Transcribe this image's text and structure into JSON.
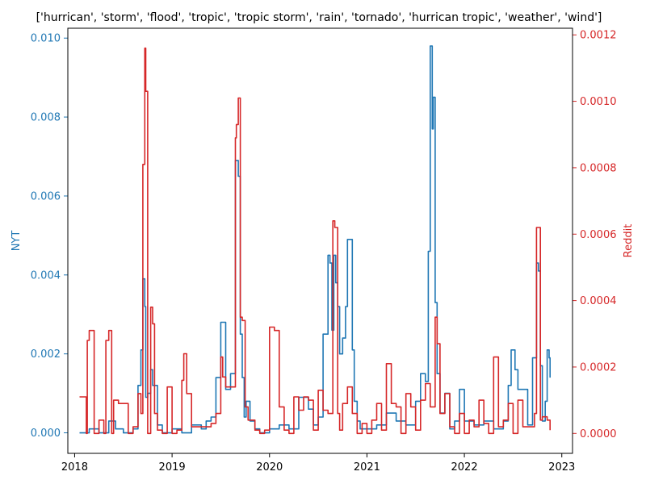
{
  "chart_data": {
    "type": "line",
    "title": "['hurrican', 'storm', 'flood', 'tropic', 'tropic storm', 'rain', 'tornado', 'hurrican tropic', 'weather', 'wind']",
    "xlabel": "",
    "ylabel": "NYT",
    "ylabel_right": "Reddit",
    "xlim": [
      2017.93,
      2023.11
    ],
    "ylim": [
      -0.00052,
      0.01025
    ],
    "ylim_right": [
      -6e-05,
      0.00122
    ],
    "xticks": [
      2018,
      2019,
      2020,
      2021,
      2022,
      2023
    ],
    "xtick_labels": [
      "2018",
      "2019",
      "2020",
      "2021",
      "2022",
      "2023"
    ],
    "yticks": [
      0.0,
      0.002,
      0.004,
      0.006,
      0.008,
      0.01
    ],
    "ytick_labels": [
      "0.000",
      "0.002",
      "0.004",
      "0.006",
      "0.008",
      "0.010"
    ],
    "yticks_right": [
      0.0,
      0.0002,
      0.0004,
      0.0006,
      0.0008,
      0.001,
      0.0012
    ],
    "ytick_labels_right": [
      "0.0000",
      "0.0002",
      "0.0004",
      "0.0006",
      "0.0008",
      "0.0010",
      "0.0012"
    ],
    "grid": false,
    "colors": {
      "nyt": "#1f77b4",
      "reddit": "#d62728"
    },
    "series": [
      {
        "axis": "left",
        "color": "#1f77b4",
        "x": [
          2018.05,
          2018.15,
          2018.25,
          2018.35,
          2018.42,
          2018.5,
          2018.6,
          2018.65,
          2018.68,
          2018.7,
          2018.72,
          2018.73,
          2018.75,
          2018.78,
          2018.8,
          2018.85,
          2018.9,
          2019.0,
          2019.1,
          2019.2,
          2019.3,
          2019.35,
          2019.4,
          2019.45,
          2019.5,
          2019.52,
          2019.55,
          2019.6,
          2019.65,
          2019.68,
          2019.7,
          2019.72,
          2019.74,
          2019.76,
          2019.8,
          2019.85,
          2019.9,
          2020.0,
          2020.1,
          2020.2,
          2020.3,
          2020.4,
          2020.45,
          2020.5,
          2020.55,
          2020.6,
          2020.62,
          2020.64,
          2020.66,
          2020.68,
          2020.7,
          2020.72,
          2020.75,
          2020.78,
          2020.8,
          2020.82,
          2020.85,
          2020.87,
          2020.9,
          2020.93,
          2021.0,
          2021.1,
          2021.2,
          2021.3,
          2021.4,
          2021.5,
          2021.55,
          2021.6,
          2021.63,
          2021.65,
          2021.67,
          2021.68,
          2021.7,
          2021.72,
          2021.75,
          2021.8,
          2021.85,
          2021.9,
          2021.95,
          2022.0,
          2022.1,
          2022.2,
          2022.3,
          2022.4,
          2022.45,
          2022.48,
          2022.52,
          2022.55,
          2022.6,
          2022.65,
          2022.7,
          2022.72,
          2022.74,
          2022.76,
          2022.78,
          2022.8,
          2022.83,
          2022.85,
          2022.87,
          2022.88
        ],
        "values": [
          0.0,
          0.0001,
          0.0,
          0.0003,
          0.0001,
          0.0,
          0.0001,
          0.0012,
          0.0021,
          0.0039,
          0.0032,
          0.0009,
          0.001,
          0.0016,
          0.0012,
          0.0002,
          0.0,
          0.0001,
          0.0,
          0.0002,
          0.0001,
          0.0003,
          0.0004,
          0.0014,
          0.0028,
          0.0028,
          0.0011,
          0.0015,
          0.0069,
          0.0065,
          0.0025,
          0.0014,
          0.0004,
          0.0008,
          0.0003,
          0.0001,
          0.0,
          0.0001,
          0.0002,
          0.0001,
          0.0009,
          0.0006,
          0.0002,
          0.0004,
          0.0025,
          0.0045,
          0.0043,
          0.0026,
          0.0045,
          0.0038,
          0.0032,
          0.002,
          0.0024,
          0.0032,
          0.0049,
          0.0049,
          0.0021,
          0.0008,
          0.0003,
          0.0001,
          0.0001,
          0.0002,
          0.0005,
          0.0003,
          0.0002,
          0.0008,
          0.0015,
          0.0013,
          0.0046,
          0.0098,
          0.0077,
          0.0085,
          0.0033,
          0.0015,
          0.0005,
          0.001,
          0.0001,
          0.0003,
          0.0011,
          0.0003,
          0.0002,
          0.0003,
          0.0001,
          0.0003,
          0.0012,
          0.0021,
          0.0016,
          0.0011,
          0.0011,
          0.0002,
          0.0019,
          0.0019,
          0.0043,
          0.0041,
          0.0017,
          0.0003,
          0.0008,
          0.0021,
          0.0019,
          0.0014
        ]
      },
      {
        "axis": "right",
        "color": "#d62728",
        "x": [
          2018.05,
          2018.1,
          2018.12,
          2018.13,
          2018.15,
          2018.2,
          2018.25,
          2018.3,
          2018.32,
          2018.35,
          2018.38,
          2018.4,
          2018.45,
          2018.55,
          2018.6,
          2018.65,
          2018.68,
          2018.7,
          2018.72,
          2018.73,
          2018.75,
          2018.78,
          2018.8,
          2018.82,
          2018.85,
          2018.9,
          2018.95,
          2019.0,
          2019.05,
          2019.1,
          2019.12,
          2019.15,
          2019.2,
          2019.3,
          2019.4,
          2019.45,
          2019.5,
          2019.52,
          2019.55,
          2019.6,
          2019.65,
          2019.66,
          2019.68,
          2019.7,
          2019.72,
          2019.75,
          2019.78,
          2019.8,
          2019.85,
          2019.9,
          2019.95,
          2020.0,
          2020.05,
          2020.1,
          2020.15,
          2020.2,
          2020.25,
          2020.3,
          2020.35,
          2020.4,
          2020.45,
          2020.5,
          2020.55,
          2020.6,
          2020.65,
          2020.67,
          2020.7,
          2020.72,
          2020.75,
          2020.8,
          2020.85,
          2020.9,
          2020.95,
          2021.0,
          2021.05,
          2021.1,
          2021.15,
          2021.2,
          2021.25,
          2021.3,
          2021.35,
          2021.4,
          2021.45,
          2021.5,
          2021.55,
          2021.6,
          2021.65,
          2021.7,
          2021.72,
          2021.75,
          2021.8,
          2021.85,
          2021.9,
          2021.95,
          2022.0,
          2022.05,
          2022.1,
          2022.15,
          2022.2,
          2022.25,
          2022.3,
          2022.35,
          2022.4,
          2022.45,
          2022.5,
          2022.55,
          2022.6,
          2022.65,
          2022.7,
          2022.72,
          2022.74,
          2022.76,
          2022.78,
          2022.8,
          2022.85,
          2022.88
        ],
        "values": [
          0.00011,
          0.00011,
          0.0,
          0.00028,
          0.00031,
          0.0,
          4e-05,
          0.0,
          0.00028,
          0.00031,
          0.0,
          0.0001,
          9e-05,
          0.0,
          2e-05,
          0.00012,
          6e-05,
          0.00081,
          0.00116,
          0.00103,
          0.0,
          0.00038,
          0.00033,
          6e-05,
          1e-05,
          0.0,
          0.00014,
          0.0,
          1e-05,
          0.00016,
          0.00024,
          0.00012,
          2e-05,
          2e-05,
          3e-05,
          6e-05,
          0.00023,
          0.00017,
          0.00014,
          0.00014,
          0.00089,
          0.00093,
          0.00101,
          0.00035,
          0.00034,
          8e-05,
          4e-05,
          4e-05,
          1e-05,
          0.0,
          1e-05,
          0.00032,
          0.00031,
          8e-05,
          1e-05,
          0.0,
          0.00011,
          7e-05,
          0.00011,
          0.0001,
          1e-05,
          0.00013,
          7e-05,
          6e-05,
          0.00064,
          0.00062,
          6e-05,
          1e-05,
          9e-05,
          0.00014,
          6e-05,
          0.0,
          3e-05,
          0.0,
          4e-05,
          9e-05,
          1e-05,
          0.00021,
          9e-05,
          8e-05,
          0.0,
          0.00012,
          8e-05,
          1e-05,
          0.0001,
          0.00015,
          8e-05,
          0.00035,
          0.00027,
          6e-05,
          0.00012,
          2e-05,
          0.0,
          6e-05,
          0.0,
          4e-05,
          2e-05,
          0.0001,
          3e-05,
          0.0,
          0.00023,
          2e-05,
          4e-05,
          9e-05,
          0.0,
          0.0001,
          2e-05,
          2e-05,
          2e-05,
          6e-05,
          0.00062,
          0.00062,
          4e-05,
          5e-05,
          4e-05,
          1e-05
        ]
      }
    ]
  }
}
